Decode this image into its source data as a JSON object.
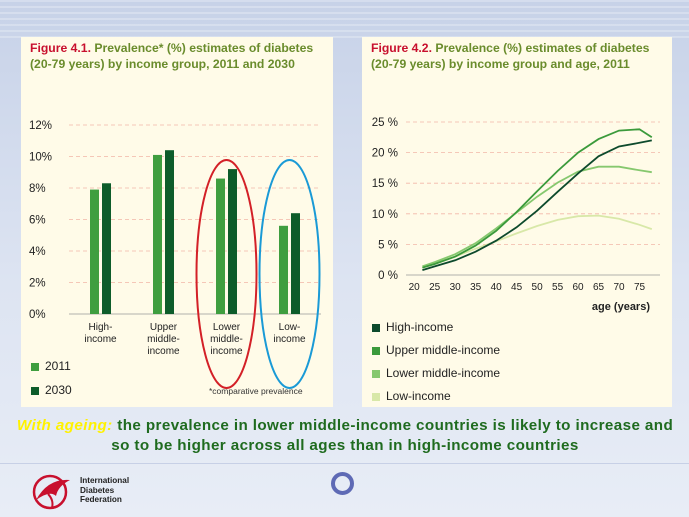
{
  "chart_data": [
    {
      "type": "bar",
      "figure_number": "Figure 4.1.",
      "title": "Prevalence* (%) estimates of diabetes (20-79 years) by income group, 2011 and 2030",
      "categories": [
        "High-income",
        "Upper middle-income",
        "Lower middle-income",
        "Low-income"
      ],
      "category_label_lines": [
        [
          "High-",
          "income"
        ],
        [
          "Upper",
          "middle-",
          "income"
        ],
        [
          "Lower",
          "middle-",
          "income"
        ],
        [
          "Low-",
          "income"
        ]
      ],
      "series": [
        {
          "name": "2011",
          "color": "#3f9e3f",
          "values": [
            7.9,
            10.1,
            8.6,
            5.6
          ]
        },
        {
          "name": "2030",
          "color": "#0d5c2a",
          "values": [
            8.3,
            10.4,
            9.2,
            6.4
          ]
        }
      ],
      "yticks": [
        "0%",
        "2%",
        "4%",
        "6%",
        "8%",
        "10%",
        "12%"
      ],
      "ylim": [
        0,
        12
      ],
      "gridlines": true,
      "note": "*comparative prevalence",
      "highlights": [
        {
          "category": "Lower middle-income",
          "color": "#d32027"
        },
        {
          "category": "Low-income",
          "color": "#1a9ad6"
        }
      ]
    },
    {
      "type": "line",
      "figure_number": "Figure 4.2.",
      "title": "Prevalence (%) estimates of diabetes (20-79 years) by income group and age, 2011",
      "x": [
        20,
        25,
        30,
        35,
        40,
        45,
        50,
        55,
        60,
        65,
        70,
        75
      ],
      "xticks": [
        "20",
        "25",
        "30",
        "35",
        "40",
        "45",
        "50",
        "55",
        "60",
        "65",
        "70",
        "75"
      ],
      "xlabel": "age (years)",
      "yticks": [
        "0 %",
        "5 %",
        "10 %",
        "15 %",
        "20 %",
        "25 %"
      ],
      "ylim": [
        0,
        25
      ],
      "xlim": [
        18,
        80
      ],
      "gridlines": true,
      "series": [
        {
          "name": "High-income",
          "color": "#0d4a2c",
          "points": [
            [
              22,
              0.8
            ],
            [
              25,
              1.4
            ],
            [
              30,
              2.4
            ],
            [
              35,
              3.8
            ],
            [
              40,
              5.6
            ],
            [
              45,
              7.8
            ],
            [
              50,
              10.5
            ],
            [
              55,
              13.6
            ],
            [
              60,
              16.6
            ],
            [
              65,
              19.4
            ],
            [
              70,
              21.0
            ],
            [
              75,
              21.6
            ],
            [
              78,
              22.0
            ]
          ]
        },
        {
          "name": "Upper middle-income",
          "color": "#3b9a3b",
          "points": [
            [
              22,
              1.2
            ],
            [
              25,
              1.8
            ],
            [
              30,
              3.0
            ],
            [
              35,
              4.8
            ],
            [
              40,
              7.2
            ],
            [
              45,
              10.3
            ],
            [
              50,
              13.7
            ],
            [
              55,
              17.0
            ],
            [
              60,
              20.0
            ],
            [
              65,
              22.2
            ],
            [
              70,
              23.6
            ],
            [
              75,
              23.8
            ],
            [
              78,
              22.5
            ]
          ]
        },
        {
          "name": "Lower middle-income",
          "color": "#86c86e",
          "points": [
            [
              22,
              1.4
            ],
            [
              25,
              2.1
            ],
            [
              30,
              3.4
            ],
            [
              35,
              5.2
            ],
            [
              40,
              7.6
            ],
            [
              45,
              10.2
            ],
            [
              50,
              12.8
            ],
            [
              55,
              15.1
            ],
            [
              60,
              16.9
            ],
            [
              65,
              17.7
            ],
            [
              70,
              17.7
            ],
            [
              75,
              17.1
            ],
            [
              78,
              16.8
            ]
          ]
        },
        {
          "name": "Low-income",
          "color": "#d8e8a8",
          "points": [
            [
              22,
              1.2
            ],
            [
              25,
              2.0
            ],
            [
              30,
              3.0
            ],
            [
              35,
              4.3
            ],
            [
              40,
              5.5
            ],
            [
              45,
              6.8
            ],
            [
              50,
              8.0
            ],
            [
              55,
              9.0
            ],
            [
              60,
              9.6
            ],
            [
              65,
              9.7
            ],
            [
              70,
              9.2
            ],
            [
              75,
              8.2
            ],
            [
              78,
              7.5
            ]
          ]
        }
      ]
    }
  ],
  "caption": {
    "highlight": "With ageing:",
    "text": " the prevalence in lower middle-income countries is likely to increase and so to be higher across all ages than in high-income countries"
  },
  "logo": {
    "line1": "International",
    "line2": "Diabetes",
    "line3": "Federation"
  }
}
